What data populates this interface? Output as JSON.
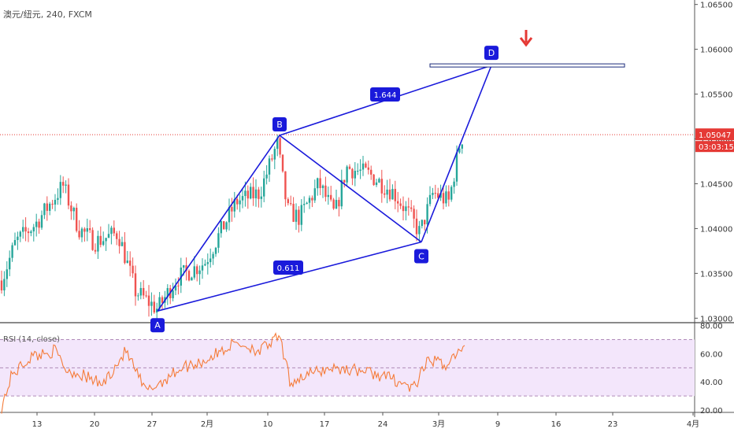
{
  "chart_data": [
    {
      "type": "candlestick",
      "symbol": "澳元/纽元, 240, FXCM",
      "current_price": "1.05047",
      "countdown": "03:03:15",
      "y_ticks": [
        "1.06500",
        "1.06000",
        "1.05500",
        "1.05000",
        "1.04500",
        "1.04000",
        "1.03500",
        "1.03000"
      ],
      "ylim": [
        1.0295,
        1.0655
      ],
      "x_ticks": [
        "13",
        "20",
        "27",
        "2月",
        "10",
        "17",
        "24",
        "3月",
        "9",
        "16",
        "23",
        "4月"
      ],
      "pattern": {
        "name": "ABCD",
        "points": [
          {
            "label": "A",
            "x": "Jan 27",
            "y": 1.0308
          },
          {
            "label": "B",
            "x": "Feb 11",
            "y": 1.0504
          },
          {
            "label": "C",
            "x": "Feb 28",
            "y": 1.0385
          },
          {
            "label": "D",
            "x": "Mar 9",
            "y": 1.0582
          }
        ],
        "ratios": [
          {
            "label": "1.644",
            "between": [
              "B",
              "D"
            ]
          },
          {
            "label": "0.611",
            "between": [
              "A",
              "C"
            ]
          }
        ],
        "target_zone": 1.0582,
        "signal": "down-arrow"
      },
      "colors": {
        "up": "#26a69a",
        "down": "#ef5350",
        "pattern": "#1a1adb",
        "price_line": "#e53935"
      }
    },
    {
      "type": "line",
      "title": "RSI (14, close)",
      "y_ticks": [
        "80.00",
        "60.00",
        "40.00",
        "20.00"
      ],
      "ylim": [
        15,
        82
      ],
      "bands": [
        70,
        30
      ],
      "color": "#f57c3a",
      "band_fill": "#f3e6fb"
    }
  ]
}
